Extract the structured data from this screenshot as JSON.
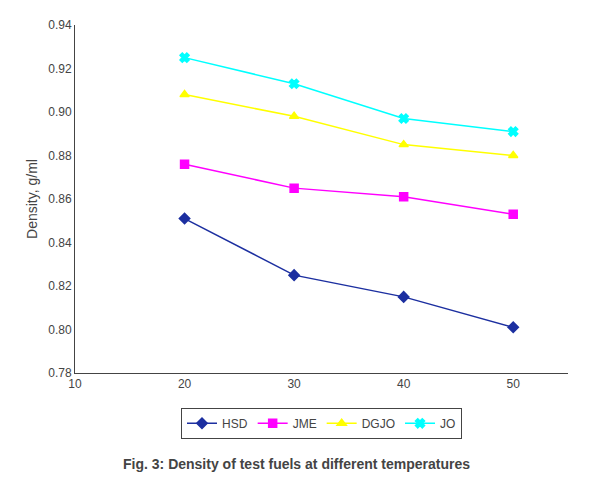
{
  "chart_data": {
    "type": "line",
    "title": "Fig. 3: Density of test fuels at different temperatures",
    "ylabel": "Density, g/ml",
    "x": [
      20,
      30,
      40,
      50
    ],
    "series": [
      {
        "name": "HSD",
        "color": "#1C2FA0",
        "marker": "diamond",
        "line_style": "solid",
        "values": [
          0.851,
          0.825,
          0.815,
          0.801
        ]
      },
      {
        "name": "JME",
        "color": "#FF00FF",
        "marker": "square",
        "line_style": "solid",
        "values": [
          0.876,
          0.865,
          0.861,
          0.853
        ]
      },
      {
        "name": "DGJO",
        "color": "#FFFF00",
        "marker": "triangle-up",
        "line_style": "solid",
        "values": [
          0.908,
          0.898,
          0.885,
          0.88
        ]
      },
      {
        "name": "JO",
        "color": "#00FFFF",
        "marker": "x",
        "line_style": "solid",
        "values": [
          0.925,
          0.913,
          0.897,
          0.891
        ]
      }
    ],
    "xlim": [
      10,
      55
    ],
    "xticks": [
      10,
      20,
      30,
      40,
      50
    ],
    "ylim": [
      0.78,
      0.94
    ],
    "yticks": [
      0.78,
      {
        "value": 0.8,
        "label": "0.80"
      },
      0.82,
      0.84,
      0.86,
      0.88,
      {
        "value": 0.9,
        "label": "0.90"
      },
      0.92,
      0.94
    ],
    "grid": false,
    "legend": "bottom"
  }
}
